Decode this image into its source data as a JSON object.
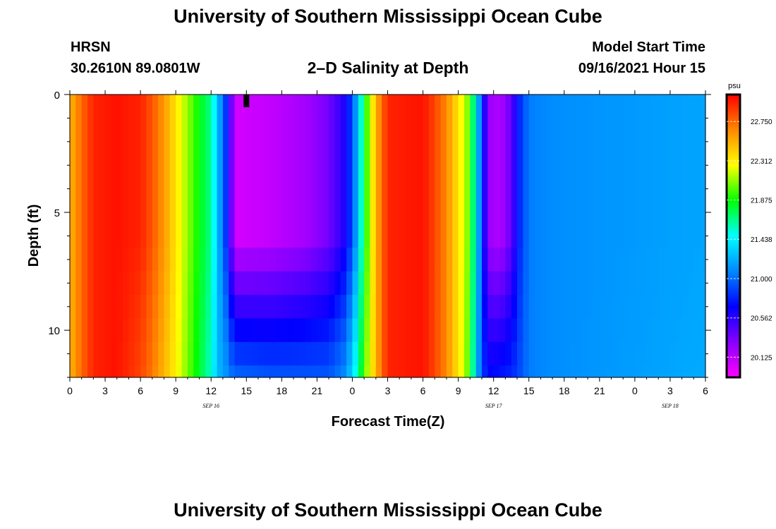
{
  "header": {
    "title": "University of Southern Mississippi Ocean Cube",
    "station": "HRSN",
    "coords": "30.2610N  89.0801W",
    "subtitle": "2–D Salinity at Depth",
    "model_start_label": "Model Start Time",
    "model_start_value": "09/16/2021 Hour 15"
  },
  "footer": {
    "title": "University of Southern Mississippi Ocean Cube"
  },
  "chart_data": {
    "type": "heatmap",
    "title": "2–D Salinity at Depth",
    "xlabel": "Forecast Time(Z)",
    "ylabel": "Depth (ft)",
    "x_hours_range": [
      0,
      54
    ],
    "x_tick_labels": [
      "0",
      "3",
      "6",
      "9",
      "12",
      "15",
      "18",
      "21",
      "0",
      "3",
      "6",
      "9",
      "12",
      "15",
      "18",
      "21",
      "0",
      "3",
      "6"
    ],
    "date_labels": [
      {
        "label": "SEP 16",
        "hour": 12
      },
      {
        "label": "SEP 17",
        "hour": 36
      },
      {
        "label": "SEP 18",
        "hour": 51
      }
    ],
    "y_range": [
      0,
      12
    ],
    "y_ticks": [
      0,
      5,
      10
    ],
    "current_time_marker_hour": 15,
    "colorbar": {
      "unit": "psu",
      "range": [
        19.9,
        23.05
      ],
      "tick_values": [
        "22.750",
        "22.312",
        "21.875",
        "21.438",
        "21.000",
        "20.562",
        "20.125"
      ],
      "colors": [
        "#ff00ff",
        "#8800ff",
        "#0000ff",
        "#0088ff",
        "#00ffff",
        "#00ff00",
        "#ffff00",
        "#ff8800",
        "#ff0000"
      ]
    },
    "depths_ft": [
      0.5,
      2.5,
      4.5,
      6.5,
      8.5,
      9.5,
      10.5,
      11.5
    ],
    "columns": [
      {
        "hour": 0,
        "surface": 22.5,
        "bottom": 22.5
      },
      {
        "hour": 1,
        "surface": 22.75,
        "bottom": 22.75
      },
      {
        "hour": 2,
        "surface": 22.95,
        "bottom": 22.95
      },
      {
        "hour": 4,
        "surface": 23.0,
        "bottom": 23.0
      },
      {
        "hour": 6,
        "surface": 22.95,
        "bottom": 22.85
      },
      {
        "hour": 7,
        "surface": 22.8,
        "bottom": 22.7
      },
      {
        "hour": 8,
        "surface": 22.6,
        "bottom": 22.5
      },
      {
        "hour": 9,
        "surface": 22.35,
        "bottom": 22.3
      },
      {
        "hour": 10,
        "surface": 22.1,
        "bottom": 22.05
      },
      {
        "hour": 11,
        "surface": 21.85,
        "bottom": 21.8
      },
      {
        "hour": 12,
        "surface": 21.65,
        "bottom": 21.55
      },
      {
        "hour": 12.5,
        "surface": 21.3,
        "bottom": 21.25
      },
      {
        "hour": 13.2,
        "surface": 20.9,
        "bottom": 21.15
      },
      {
        "hour": 13.6,
        "surface": 20.45,
        "bottom": 21.05
      },
      {
        "hour": 14.2,
        "surface": 20.05,
        "bottom": 21.0
      },
      {
        "hour": 17,
        "surface": 20.1,
        "bottom": 20.95
      },
      {
        "hour": 20,
        "surface": 20.2,
        "bottom": 20.95
      },
      {
        "hour": 22,
        "surface": 20.35,
        "bottom": 20.95
      },
      {
        "hour": 23.3,
        "surface": 20.6,
        "bottom": 21.1
      },
      {
        "hour": 24,
        "surface": 20.9,
        "bottom": 21.35
      },
      {
        "hour": 24.6,
        "surface": 21.4,
        "bottom": 21.7
      },
      {
        "hour": 25,
        "surface": 21.8,
        "bottom": 22.0
      },
      {
        "hour": 25.6,
        "surface": 22.25,
        "bottom": 22.3
      },
      {
        "hour": 26.2,
        "surface": 22.6,
        "bottom": 22.6
      },
      {
        "hour": 27,
        "surface": 22.95,
        "bottom": 22.95
      },
      {
        "hour": 30,
        "surface": 23.0,
        "bottom": 23.0
      },
      {
        "hour": 31,
        "surface": 22.85,
        "bottom": 22.85
      },
      {
        "hour": 32,
        "surface": 22.65,
        "bottom": 22.65
      },
      {
        "hour": 33,
        "surface": 22.35,
        "bottom": 22.35
      },
      {
        "hour": 34,
        "surface": 22.0,
        "bottom": 21.95
      },
      {
        "hour": 34.5,
        "surface": 21.4,
        "bottom": 21.3
      },
      {
        "hour": 35,
        "surface": 20.9,
        "bottom": 20.9
      },
      {
        "hour": 35.5,
        "surface": 20.25,
        "bottom": 20.7
      },
      {
        "hour": 36.5,
        "surface": 20.15,
        "bottom": 20.75
      },
      {
        "hour": 37.5,
        "surface": 20.4,
        "bottom": 20.8
      },
      {
        "hour": 38.2,
        "surface": 20.8,
        "bottom": 20.9
      },
      {
        "hour": 39,
        "surface": 21.05,
        "bottom": 21.05
      },
      {
        "hour": 41,
        "surface": 21.1,
        "bottom": 21.1
      },
      {
        "hour": 54,
        "surface": 21.18,
        "bottom": 21.2
      }
    ]
  }
}
